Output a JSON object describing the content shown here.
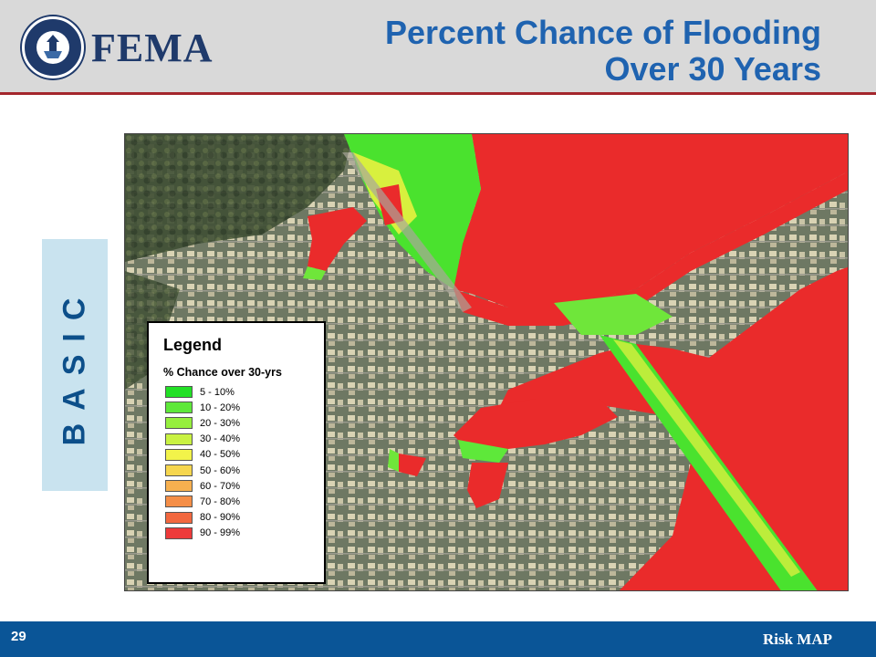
{
  "header": {
    "logo_text": "FEMA",
    "title_line1": "Percent Chance of Flooding",
    "title_line2": "Over 30 Years"
  },
  "side_tab": {
    "label": "BASIC"
  },
  "legend": {
    "title": "Legend",
    "subtitle": "% Chance over 30-yrs",
    "items": [
      {
        "label": "5 - 10%",
        "color": "#22e026"
      },
      {
        "label": "10 - 20%",
        "color": "#5ee83a"
      },
      {
        "label": "20 - 30%",
        "color": "#96ef3e"
      },
      {
        "label": "30 - 40%",
        "color": "#c9f242"
      },
      {
        "label": "40 - 50%",
        "color": "#f2f34a"
      },
      {
        "label": "50 - 60%",
        "color": "#f6d64e"
      },
      {
        "label": "60 - 70%",
        "color": "#f7b04f"
      },
      {
        "label": "70 - 80%",
        "color": "#f58e47"
      },
      {
        "label": "80 - 90%",
        "color": "#f2683f"
      },
      {
        "label": "90 - 99%",
        "color": "#ed3a3a"
      }
    ]
  },
  "footer": {
    "page_number": "29",
    "brand": "Risk MAP"
  }
}
